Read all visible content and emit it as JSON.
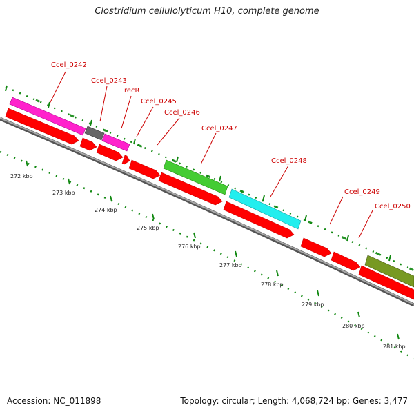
{
  "title": "Clostridium cellulolyticum H10, complete genome",
  "footer": {
    "accession": "Accession: NC_011898",
    "topology": "Topology: circular; Length: 4,068,724 bp; Genes: 3,477"
  },
  "colors": {
    "cds": "#ff0000",
    "backbone": "#888888",
    "tick": "#118811",
    "label": "#cc0000",
    "magenta": "#ff22cc",
    "gray": "#666666",
    "green": "#44cc33",
    "cyan": "#22eeee",
    "olive": "#779922"
  },
  "kbp_labels": [
    "272 kbp",
    "273 kbp",
    "274 kbp",
    "275 kbp",
    "276 kbp",
    "277 kbp",
    "278 kbp",
    "279 kbp",
    "280 kbp",
    "281 kbp"
  ],
  "gene_labels": [
    "Ccel_0242",
    "Ccel_0243",
    "recR",
    "Ccel_0245",
    "Ccel_0246",
    "Ccel_0247",
    "Ccel_0248",
    "Ccel_0249",
    "Ccel_0250"
  ]
}
